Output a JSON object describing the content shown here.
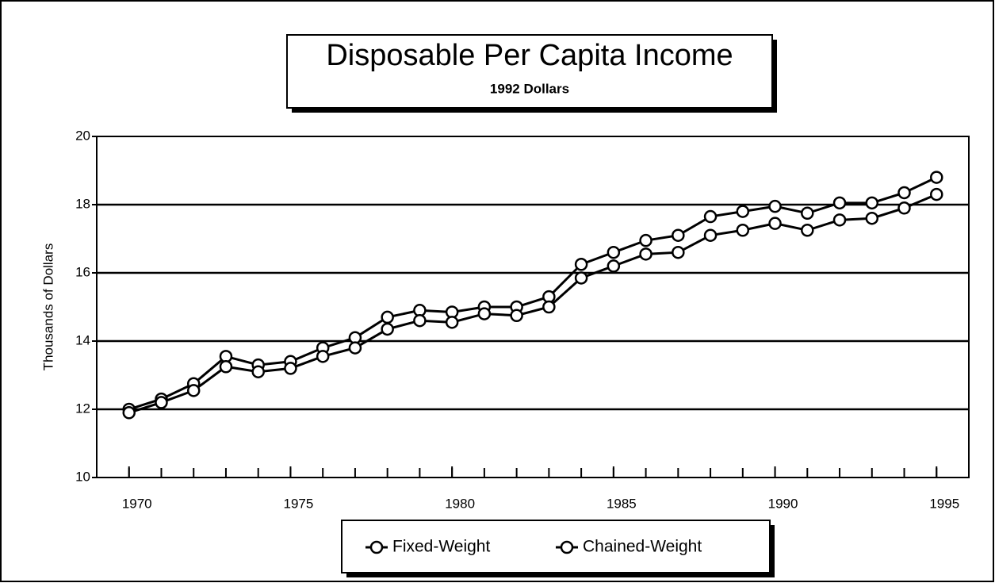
{
  "chart_data": {
    "type": "line",
    "title": "Disposable Per Capita Income",
    "subtitle": "1992 Dollars",
    "y_label": "Thousands of Dollars",
    "x": [
      1970,
      1971,
      1972,
      1973,
      1974,
      1975,
      1976,
      1977,
      1978,
      1979,
      1980,
      1981,
      1982,
      1983,
      1984,
      1985,
      1986,
      1987,
      1988,
      1989,
      1990,
      1991,
      1992,
      1993,
      1994,
      1995
    ],
    "series": [
      {
        "name": "Fixed-Weight",
        "color": "#000000",
        "values": [
          12.0,
          12.3,
          12.75,
          13.55,
          13.3,
          13.4,
          13.8,
          14.1,
          14.7,
          14.9,
          14.85,
          15.0,
          15.0,
          15.3,
          16.25,
          16.6,
          16.95,
          17.1,
          17.65,
          17.8,
          17.95,
          17.75,
          18.05,
          18.05,
          18.35,
          18.8
        ]
      },
      {
        "name": "Chained-Weight",
        "color": "#000000",
        "values": [
          11.9,
          12.2,
          12.55,
          13.25,
          13.1,
          13.2,
          13.55,
          13.8,
          14.35,
          14.6,
          14.55,
          14.8,
          14.75,
          15.0,
          15.85,
          16.2,
          16.55,
          16.6,
          17.1,
          17.25,
          17.45,
          17.25,
          17.55,
          17.6,
          17.9,
          18.3
        ]
      }
    ],
    "xlim": [
      1969,
      1996
    ],
    "xticks": [
      1970,
      1975,
      1980,
      1985,
      1990,
      1995
    ],
    "ylim": [
      10,
      20
    ],
    "yticks": [
      10,
      12,
      14,
      16,
      18,
      20
    ],
    "grid": true,
    "legend": "bottom"
  }
}
